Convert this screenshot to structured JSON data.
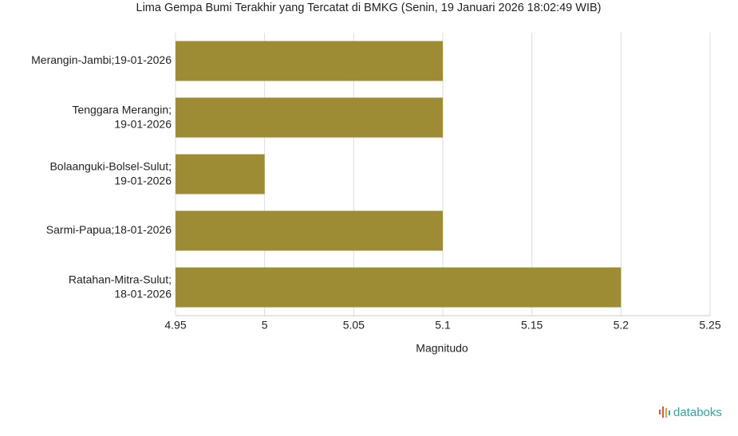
{
  "chart_data": {
    "type": "barh",
    "title": "Lima Gempa Bumi Terakhir yang Tercatat di BMKG (Senin, 19 Januari 2026 18:02:49 WIB)",
    "categories": [
      "Merangin-Jambi;19-01-2026",
      "Tenggara Merangin;19-01-2026",
      "Bolaanguki-Bolsel-Sulut;19-01-2026",
      "Sarmi-Papua;18-01-2026",
      "Ratahan-Mitra-Sulut;18-01-2026"
    ],
    "values": [
      5.1,
      5.1,
      5.0,
      5.1,
      5.2
    ],
    "color": "#9e8c35",
    "x_label": "Magnitudo",
    "xlim": [
      4.95,
      5.25
    ],
    "xticks": [
      4.95,
      5,
      5.05,
      5.1,
      5.15,
      5.2,
      5.25
    ],
    "grid": true
  },
  "logo": "databoks"
}
